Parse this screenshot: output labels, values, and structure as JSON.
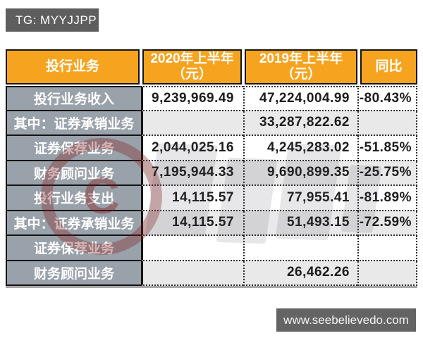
{
  "badge": {
    "text": "TG: MYYJJPP"
  },
  "footer": {
    "text": "www.seebelievedo.com"
  },
  "watermark": {
    "logo_letter": "C",
    "color": "#821616"
  },
  "colors": {
    "header_bg": "#F6A41F",
    "label_bg": "#99A1AA",
    "alt_row_bg": "#E9E9E9",
    "border": "#141414",
    "badge_bg": "#5E5E5E",
    "footer_bg": "#646464"
  },
  "table": {
    "header": {
      "col1": "投行业务",
      "col2_line1": "2020年上半年",
      "col2_line2": "（元）",
      "col3_line1": "2019年上半年",
      "col3_line2": "（元）",
      "col4": "同比"
    },
    "rows": [
      {
        "label": "投行业务收入",
        "v2020": "9,239,969.49",
        "v2019": "47,224,004.99",
        "yoy": "-80.43%"
      },
      {
        "label": "其中：证券承销业务",
        "v2020": "",
        "v2019": "33,287,822.62",
        "yoy": ""
      },
      {
        "label": "证券保荐业务",
        "v2020": "2,044,025.16",
        "v2019": "4,245,283.02",
        "yoy": "-51.85%"
      },
      {
        "label": "财务顾问业务",
        "v2020": "7,195,944.33",
        "v2019": "9,690,899.35",
        "yoy": "-25.75%"
      },
      {
        "label": "投行业务支出",
        "v2020": "14,115.57",
        "v2019": "77,955.41",
        "yoy": "-81.89%"
      },
      {
        "label": "其中：证券承销业务",
        "v2020": "14,115.57",
        "v2019": "51,493.15",
        "yoy": "-72.59%"
      },
      {
        "label": "证券保荐业务",
        "v2020": "",
        "v2019": "",
        "yoy": ""
      },
      {
        "label": "财务顾问业务",
        "v2020": "",
        "v2019": "26,462.26",
        "yoy": ""
      }
    ]
  },
  "chart_data": {
    "type": "table",
    "title": "投行业务 2020年上半年 vs 2019年上半年（元）",
    "columns": [
      "投行业务",
      "2020年上半年（元）",
      "2019年上半年（元）",
      "同比"
    ],
    "rows": [
      [
        "投行业务收入",
        "9,239,969.49",
        "47,224,004.99",
        "-80.43%"
      ],
      [
        "其中：证券承销业务",
        "",
        "33,287,822.62",
        ""
      ],
      [
        "证券保荐业务",
        "2,044,025.16",
        "4,245,283.02",
        "-51.85%"
      ],
      [
        "财务顾问业务",
        "7,195,944.33",
        "9,690,899.35",
        "-25.75%"
      ],
      [
        "投行业务支出",
        "14,115.57",
        "77,955.41",
        "-81.89%"
      ],
      [
        "其中：证券承销业务",
        "14,115.57",
        "51,493.15",
        "-72.59%"
      ],
      [
        "证券保荐业务",
        "",
        "",
        ""
      ],
      [
        "财务顾问业务",
        "",
        "26,462.26",
        ""
      ]
    ]
  }
}
